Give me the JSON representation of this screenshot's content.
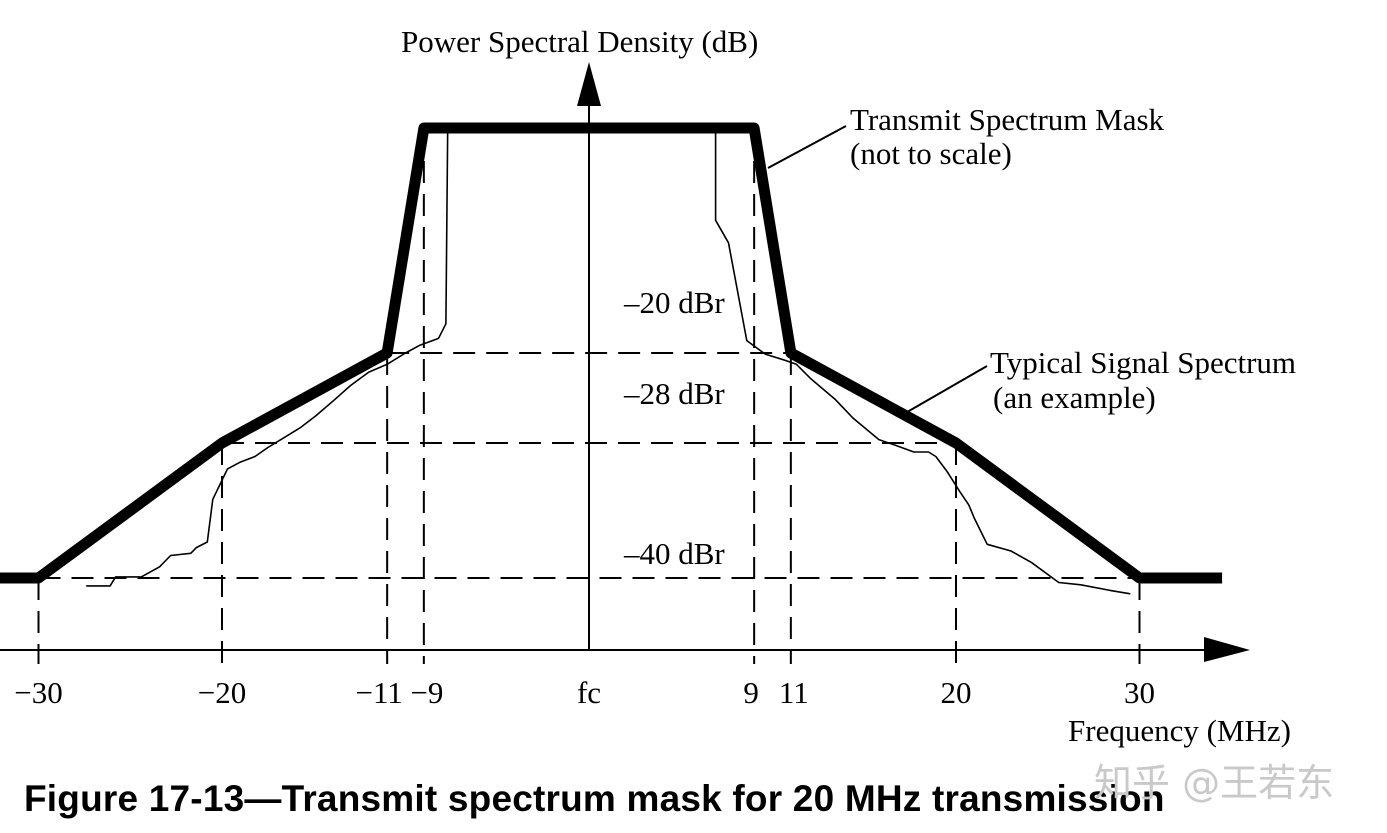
{
  "caption": "Figure 17-13—Transmit spectrum mask for 20 MHz transmission",
  "watermark": "知乎 @王若东",
  "chart_data": {
    "type": "line",
    "title": "",
    "xlabel": "Frequency (MHz)",
    "ylabel": "Power Spectral Density (dB)",
    "x_ticks": [
      {
        "value": -30,
        "label": "−30"
      },
      {
        "value": -20,
        "label": "−20"
      },
      {
        "value": -11,
        "label": "−11"
      },
      {
        "value": -9,
        "label": "−9"
      },
      {
        "value": 0,
        "label": "fc"
      },
      {
        "value": 9,
        "label": "9"
      },
      {
        "value": 11,
        "label": "11"
      },
      {
        "value": 20,
        "label": "20"
      },
      {
        "value": 30,
        "label": "30"
      }
    ],
    "y_levels": [
      {
        "value": -20,
        "label": "–20 dBr"
      },
      {
        "value": -28,
        "label": "–28 dBr"
      },
      {
        "value": -40,
        "label": "–40 dBr"
      }
    ],
    "xlim": [
      -32.5,
      34.5
    ],
    "ylim": [
      -44,
      4
    ],
    "series": [
      {
        "name": "Transmit Spectrum Mask",
        "annotation": [
          "Transmit Spectrum Mask",
          "(not to scale)"
        ],
        "color": "#000000",
        "x": [
          -32.5,
          -30,
          -20,
          -11,
          -9,
          9,
          11,
          20,
          30,
          34.5
        ],
        "y": [
          -40,
          -40,
          -28,
          -20,
          0,
          0,
          -20,
          -28,
          -40,
          -40
        ]
      },
      {
        "name": "Typical Signal Spectrum",
        "annotation": [
          "Typical Signal Spectrum",
          "(an example)"
        ],
        "color": "#000000",
        "x": [
          -27.4,
          -26.1,
          -25.8,
          -24.4,
          -23.4,
          -22.8,
          -21.7,
          -21.4,
          -20.8,
          -20.5,
          -19.7,
          -19.0,
          -18.2,
          -17.5,
          -16.6,
          -15.7,
          -14.9,
          -13.9,
          -13.0,
          -12.0,
          -11.0,
          -10.0,
          -9.2,
          -8.2,
          -7.8,
          -7.7,
          6.9,
          6.9,
          7.6,
          8.6,
          9.6,
          10.6,
          11.3,
          12.1,
          13.4,
          14.4,
          15.8,
          16.7,
          17.7,
          18.2,
          18.5,
          18.9,
          19.5,
          20.2,
          20.7,
          21.0,
          21.7,
          23.0,
          24.1,
          25.6,
          26.8,
          28.4,
          29.5
        ],
        "y": [
          -40.7,
          -40.7,
          -39.9,
          -39.9,
          -39.0,
          -38.0,
          -37.8,
          -37.3,
          -36.8,
          -33.0,
          -30.3,
          -29.7,
          -29.2,
          -28.4,
          -27.5,
          -26.6,
          -25.6,
          -24.2,
          -22.9,
          -21.7,
          -21.0,
          -20.0,
          -19.3,
          -18.7,
          -17.4,
          0.0,
          0.0,
          -8.2,
          -10.2,
          -18.9,
          -20.1,
          -20.6,
          -21.0,
          -22.3,
          -24.1,
          -25.8,
          -27.7,
          -28.2,
          -28.8,
          -28.8,
          -28.8,
          -29.2,
          -30.5,
          -32.3,
          -33.5,
          -34.7,
          -37.0,
          -37.6,
          -38.6,
          -40.4,
          -40.6,
          -41.1,
          -41.4
        ]
      }
    ],
    "grid": false,
    "legend": "none"
  }
}
